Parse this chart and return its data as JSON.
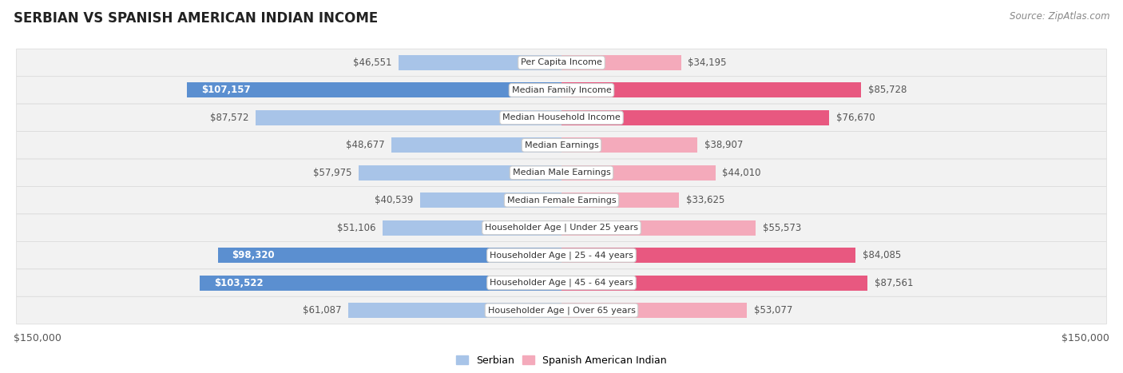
{
  "title": "SERBIAN VS SPANISH AMERICAN INDIAN INCOME",
  "source": "Source: ZipAtlas.com",
  "categories": [
    "Per Capita Income",
    "Median Family Income",
    "Median Household Income",
    "Median Earnings",
    "Median Male Earnings",
    "Median Female Earnings",
    "Householder Age | Under 25 years",
    "Householder Age | 25 - 44 years",
    "Householder Age | 45 - 64 years",
    "Householder Age | Over 65 years"
  ],
  "serbian_values": [
    46551,
    107157,
    87572,
    48677,
    57975,
    40539,
    51106,
    98320,
    103522,
    61087
  ],
  "spanish_values": [
    34195,
    85728,
    76670,
    38907,
    44010,
    33625,
    55573,
    84085,
    87561,
    53077
  ],
  "serbian_color_light": "#A8C4E8",
  "serbian_color_dark": "#5B8FD0",
  "spanish_color_light": "#F4AABB",
  "spanish_color_dark": "#E85880",
  "row_bg_color": "#F2F2F2",
  "row_border_color": "#DDDDDD",
  "max_value": 150000,
  "bar_height": 0.55,
  "label_fontsize": 8.0,
  "title_fontsize": 12,
  "source_fontsize": 8.5,
  "value_fontsize": 8.5,
  "legend_fontsize": 9,
  "bg_color": "#FFFFFF",
  "serbian_inside_threshold": 90000,
  "spanish_inside_threshold": 75000
}
